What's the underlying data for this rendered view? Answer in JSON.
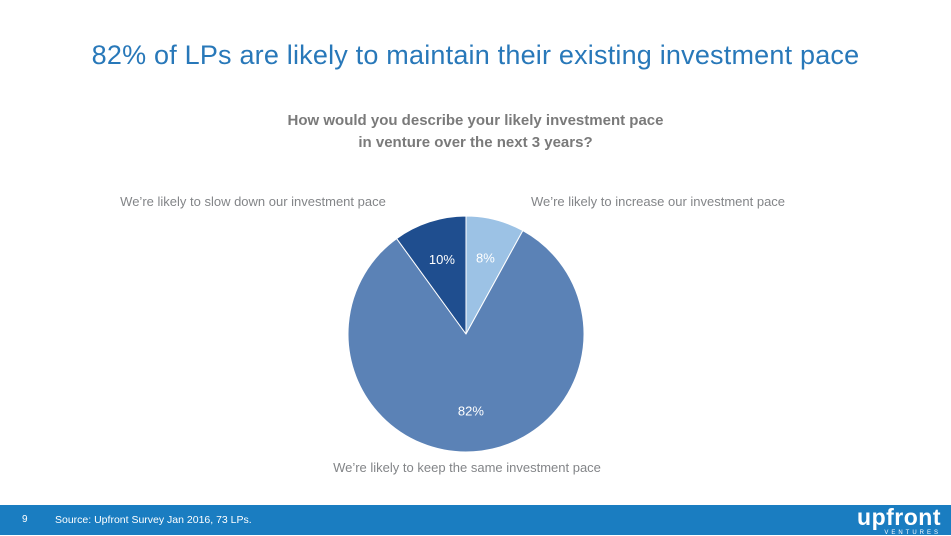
{
  "slide": {
    "title": "82% of LPs are likely to maintain their existing investment pace",
    "question_line1": "How would you describe your likely investment pace",
    "question_line2": "in venture over the next 3 years?",
    "label_left": "We’re likely to slow down our investment pace",
    "label_right": "We’re likely to increase our investment pace",
    "label_bottom": "We’re likely to keep the same investment pace"
  },
  "footer": {
    "page_number": "9",
    "source": "Source: Upfront Survey Jan 2016, 73 LPs.",
    "logo_text": "upfront",
    "logo_subtext": "VENTURES"
  },
  "colors": {
    "title_blue": "#2878b9",
    "footer_bar": "#1a7dc1",
    "text_gray": "#838588",
    "slice_increase": "#9cc2e5",
    "slice_same": "#5b82b6",
    "slice_slow": "#1f4e8f"
  },
  "chart_data": {
    "type": "pie",
    "title": "How would you describe your likely investment pace in venture over the next 3 years?",
    "start_angle_deg": 0,
    "direction": "clockwise",
    "legend_position": "labels-around-chart",
    "slices": [
      {
        "label": "We’re likely to increase our investment pace",
        "value": 8,
        "display": "8%",
        "color": "#9cc2e5"
      },
      {
        "label": "We’re likely to keep the same investment pace",
        "value": 82,
        "display": "82%",
        "color": "#5b82b6"
      },
      {
        "label": "We’re likely to slow down our investment pace",
        "value": 10,
        "display": "10%",
        "color": "#1f4e8f"
      }
    ]
  }
}
